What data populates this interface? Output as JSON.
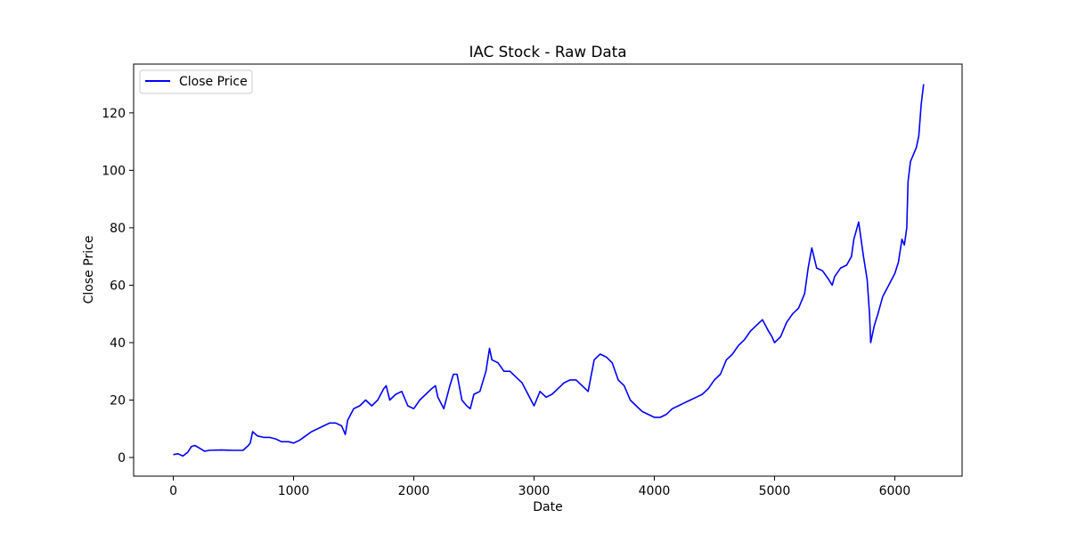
{
  "chart_data": {
    "type": "line",
    "title": "IAC Stock - Raw Data",
    "xlabel": "Date",
    "ylabel": "Close Price",
    "xlim": [
      -330,
      6560
    ],
    "ylim": [
      -6.5,
      137
    ],
    "xticks": [
      0,
      1000,
      2000,
      3000,
      4000,
      5000,
      6000
    ],
    "yticks": [
      0,
      20,
      40,
      60,
      80,
      100,
      120
    ],
    "grid": false,
    "legend_position": "top-left",
    "series": [
      {
        "name": "Close Price",
        "color": "#0000ff",
        "x": [
          0,
          40,
          80,
          120,
          150,
          180,
          220,
          260,
          300,
          400,
          500,
          580,
          620,
          640,
          660,
          700,
          750,
          800,
          850,
          900,
          960,
          1000,
          1050,
          1100,
          1150,
          1200,
          1250,
          1300,
          1350,
          1400,
          1430,
          1450,
          1500,
          1550,
          1600,
          1650,
          1700,
          1750,
          1770,
          1800,
          1850,
          1900,
          1950,
          2000,
          2050,
          2100,
          2150,
          2180,
          2200,
          2250,
          2300,
          2330,
          2360,
          2400,
          2440,
          2470,
          2500,
          2550,
          2600,
          2630,
          2650,
          2700,
          2750,
          2800,
          2850,
          2900,
          2950,
          3000,
          3050,
          3100,
          3150,
          3200,
          3250,
          3300,
          3350,
          3400,
          3450,
          3500,
          3550,
          3600,
          3650,
          3700,
          3750,
          3800,
          3850,
          3900,
          3950,
          4000,
          4050,
          4100,
          4150,
          4200,
          4250,
          4300,
          4350,
          4400,
          4450,
          4500,
          4550,
          4600,
          4650,
          4700,
          4750,
          4800,
          4850,
          4900,
          4950,
          4980,
          5000,
          5050,
          5100,
          5150,
          5200,
          5250,
          5280,
          5310,
          5350,
          5400,
          5450,
          5480,
          5500,
          5550,
          5600,
          5640,
          5660,
          5700,
          5740,
          5770,
          5790,
          5800,
          5830,
          5860,
          5900,
          5950,
          6000,
          6030,
          6060,
          6080,
          6100,
          6110,
          6130,
          6150,
          6180,
          6200,
          6220,
          6240
        ],
        "y": [
          1,
          1.3,
          0.5,
          1.8,
          3.8,
          4.2,
          3.2,
          2.2,
          2.5,
          2.6,
          2.5,
          2.5,
          4,
          5,
          9,
          7.5,
          7,
          7,
          6.5,
          5.5,
          5.5,
          5,
          6,
          7.5,
          9,
          10,
          11,
          12,
          12,
          11,
          8,
          13,
          17,
          18,
          20,
          18,
          20,
          24,
          25,
          20,
          22,
          23,
          18,
          17,
          20,
          22,
          24,
          25,
          21,
          17,
          25,
          29,
          29,
          20,
          18,
          17,
          22,
          23,
          30,
          38,
          34,
          33,
          30,
          30,
          28,
          26,
          22,
          18,
          23,
          21,
          22,
          24,
          26,
          27,
          27,
          25,
          23,
          34,
          36,
          35,
          33,
          27,
          25,
          20,
          18,
          16,
          15,
          14,
          14,
          15,
          17,
          18,
          19,
          20,
          21,
          22,
          24,
          27,
          29,
          34,
          36,
          39,
          41,
          44,
          46,
          48,
          44,
          42,
          40,
          42,
          47,
          50,
          52,
          57,
          66,
          73,
          66,
          65,
          62,
          60,
          63,
          66,
          67,
          70,
          76,
          82,
          70,
          62,
          50,
          40,
          46,
          50,
          56,
          60,
          64,
          68,
          76,
          74,
          80,
          96,
          103,
          105,
          108,
          112,
          123,
          130
        ]
      }
    ]
  }
}
